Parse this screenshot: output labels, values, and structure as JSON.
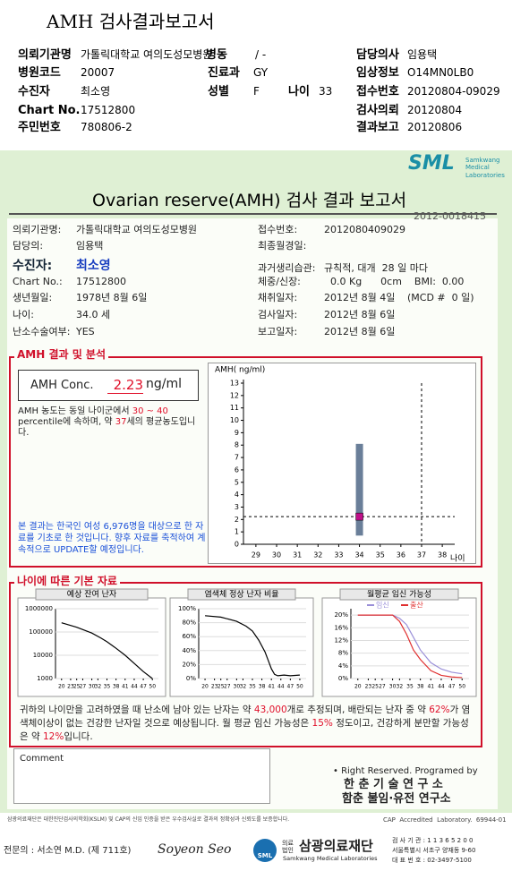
{
  "header": {
    "title": "AMH 검사결과보고서",
    "fields": [
      {
        "label": "의뢰기관명",
        "value": "가톨릭대학교 여의도성모병원"
      },
      {
        "label": "병동",
        "value": "/ -"
      },
      {
        "label": "담당의사",
        "value": "임용택"
      },
      {
        "label": "병원코드",
        "value": "20007"
      },
      {
        "label": "진료과",
        "value": "GY"
      },
      {
        "label": "임상정보",
        "value": "O14MN0LB0"
      },
      {
        "label": "수진자",
        "value": "최소영"
      },
      {
        "label": "성별",
        "value": "F"
      },
      {
        "label": "나이",
        "value": "33"
      },
      {
        "label": "접수번호",
        "value": "20120804-09029"
      },
      {
        "label": "Chart No.",
        "value": "17512800"
      },
      {
        "label": "검사의뢰",
        "value": "20120804"
      },
      {
        "label": "주민번호",
        "value": "780806-2"
      },
      {
        "label": "결과보고",
        "value": "20120806"
      }
    ]
  },
  "report": {
    "logo": "SML",
    "logo_sub": "Samkwang Medical Laboratories",
    "title": "Ovarian reserve(AMH) 검사 결과 보고서",
    "report_no": "2012-0018415",
    "patient": [
      {
        "label": "의뢰기관명:",
        "value": "가톨릭대학교 여의도성모병원"
      },
      {
        "label": "담당의:",
        "value": "임용택"
      },
      {
        "label": "수진자:",
        "value": "최소영"
      },
      {
        "label": "Chart No.:",
        "value": "17512800"
      },
      {
        "label": "생년월일:",
        "value": "1978년 8월 6일"
      },
      {
        "label": "나이:",
        "value": "34.0 세"
      },
      {
        "label": "난소수술여부:",
        "value": "YES"
      }
    ],
    "sample": [
      {
        "label": "접수번호:",
        "value": "2012080409029"
      },
      {
        "label": "최종월경일:"
      },
      {
        "label": "과거생리습관:",
        "value": "규칙적, 대개  28 일 마다"
      },
      {
        "label": "체중/신장:",
        "value": "  0.0 Kg      0cm    BMI:  0.00"
      },
      {
        "label": "채취일자:",
        "value": "2012년 8월 4일",
        "note": "(MCD #  0 일)"
      },
      {
        "label": "검사일자:",
        "value": "2012년 8월 6일"
      },
      {
        "label": "보고일자:",
        "value": "2012년 8월 6일"
      }
    ]
  },
  "result": {
    "section": "AMH 결과 및 분석",
    "conc_label": "AMH Conc.",
    "unit": "ng/ml",
    "text": [
      "AMH 농도는 동일 나이군에서 ",
      "30 ~ 40",
      " percentile에 속하며, 약 ",
      "37",
      "세의 평균농도입니다."
    ],
    "note": "본 결과는 한국인 여성 6,976명을 대상으로 한 자료를 기초로 한 것입니다. 향후 자료를 축적하여 계속적으로 UPDATE할 예정입니다."
  },
  "amh_chart": {
    "ylabel": "AMH( ng/ml)",
    "xlabel": "나이",
    "ylim": [
      0,
      13
    ],
    "yticks": [
      0,
      1,
      2,
      3,
      4,
      5,
      6,
      7,
      8,
      9,
      10,
      11,
      12,
      13
    ],
    "xlim": [
      28.4,
      38.6
    ],
    "xticks": [
      29,
      30,
      31,
      32,
      33,
      34,
      35,
      36,
      37,
      38
    ],
    "range": {
      "x": 34,
      "low": 0.7,
      "high": 8.1
    },
    "point": {
      "x": 34,
      "y": 2.23
    },
    "ref_age": 37
  },
  "basic": {
    "section": "나이에 따른 기본 자료",
    "charts": [
      {
        "title": "예상 잔여 난자",
        "log": true,
        "ylim": [
          1000,
          1000000
        ],
        "yticks": [
          1000,
          10000,
          100000,
          1000000
        ],
        "xlim": [
          18,
          52
        ],
        "xticks": [
          20,
          23,
          25,
          27,
          30,
          32,
          35,
          38,
          41,
          44,
          47,
          50
        ],
        "series": [
          {
            "color": "#000000",
            "x": [
              20,
              25,
              30,
              33,
              35,
              38,
              41,
              44,
              47,
              50
            ],
            "values": [
              250000,
              160000,
              90000,
              55000,
              38000,
              20000,
              10000,
              4500,
              2000,
              1000
            ]
          }
        ]
      },
      {
        "title": "염색체 정상 난자 비율",
        "log": false,
        "ylim": [
          0,
          100
        ],
        "yticks": [
          {
            "value": 0,
            "label": "0%"
          },
          {
            "value": 20,
            "label": "20%"
          },
          {
            "value": 40,
            "label": "40%"
          },
          {
            "value": 60,
            "label": "60%"
          },
          {
            "value": 80,
            "label": "80%"
          },
          {
            "value": 100,
            "label": "100%"
          }
        ],
        "xlim": [
          18,
          52
        ],
        "xticks": [
          20,
          23,
          25,
          27,
          30,
          32,
          35,
          38,
          41,
          44,
          47,
          50
        ],
        "series": [
          {
            "color": "#000000",
            "x": [
              20,
              25,
              30,
              33,
              35,
              37,
              39,
              40,
              41,
              42,
              43,
              45,
              47,
              50
            ],
            "values": [
              90,
              88,
              82,
              75,
              68,
              55,
              38,
              26,
              14,
              6,
              4,
              5,
              4,
              5
            ]
          }
        ]
      },
      {
        "title": "월평균 임신 가능성",
        "log": false,
        "ylim": [
          0,
          22
        ],
        "yticks": [
          {
            "value": 0,
            "label": "0%"
          },
          {
            "value": 4,
            "label": "4%"
          },
          {
            "value": 8,
            "label": "8%"
          },
          {
            "value": 12,
            "label": "12%"
          },
          {
            "value": 16,
            "label": "16%"
          },
          {
            "value": 20,
            "label": "20%"
          }
        ],
        "xlim": [
          18,
          52
        ],
        "xticks": [
          20,
          23,
          25,
          27,
          30,
          32,
          35,
          38,
          41,
          44,
          47,
          50
        ],
        "series": [
          {
            "name": "임신",
            "color": "#9a8fd8",
            "x": [
              20,
              30,
              32,
              34,
              36,
              38,
              41,
              44,
              47,
              50
            ],
            "values": [
              20,
              20,
              19,
              17,
              13,
              9,
              5,
              3,
              2,
              1.5
            ]
          },
          {
            "name": "출산",
            "color": "#e03030",
            "x": [
              20,
              30,
              32,
              34,
              36,
              38,
              41,
              44,
              47,
              50
            ],
            "values": [
              20,
              20,
              18,
              14,
              9,
              6,
              2.5,
              1,
              0.5,
              0.3
            ]
          }
        ]
      }
    ],
    "summary": [
      "귀하의 나이만을 고려하였을 때 난소에 남아 있는 난자는 약 ",
      "43,000",
      "개로 추정되며, 배란되는 난자 중 약 ",
      "62%",
      "가 염색체이상이 없는 건강한 난자일 것으로 예상됩니다. 월 평균 임신 가능성은 ",
      "15%",
      " 정도이고, 건강하게 분만할 가능성은 약 ",
      "12%",
      "입니다."
    ]
  },
  "comment": "Comment",
  "credit": [
    "• Right Reserved. Programed by",
    "한 춘 기 술 연 구 소",
    "함춘 불임·유전 연구소"
  ],
  "footer": {
    "notice": "삼광의료재단은 대한진단검사의학회(KSLM) 및 CAP의 신임 인증을 받은 우수검사실로 결과의 정확성과 신뢰도를 보증합니다.",
    "cap": "CAP  Accredited  Laboratory.  69944-01",
    "doctor": "전문의 : 서소연 M.D. (제 711호)",
    "signature": "Soyeon Seo",
    "org_prefix": "의료법인",
    "org": "삼광의료재단",
    "org_en": "Samkwang Medical Laboratories",
    "contact": [
      "검 사 기 관 : 1 1 3 6 5 2 0 0",
      "서울특별시 서초구 양재동 9-60",
      "대 표 번 호 : 02-3497-5100"
    ]
  }
}
